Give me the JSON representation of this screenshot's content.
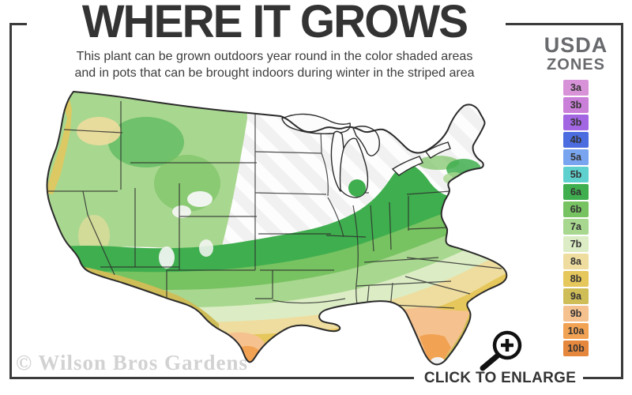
{
  "header": {
    "title": "WHERE IT GROWS",
    "subtitle_line1": "This plant can be grown outdoors year round in the color shaded areas",
    "subtitle_line2": "and in pots that can be brought indoors during winter in the striped area"
  },
  "legend": {
    "title_line1": "USDA",
    "title_line2": "ZONES",
    "zones": [
      {
        "label": "3a",
        "color": "#d893d8"
      },
      {
        "label": "3b",
        "color": "#ca7fd8"
      },
      {
        "label": "3b",
        "color": "#a266e2"
      },
      {
        "label": "4b",
        "color": "#4c6de0"
      },
      {
        "label": "5a",
        "color": "#79a4ef"
      },
      {
        "label": "5b",
        "color": "#5ed1cf"
      },
      {
        "label": "6a",
        "color": "#3fae4e"
      },
      {
        "label": "6b",
        "color": "#77c261"
      },
      {
        "label": "7a",
        "color": "#a8d78f"
      },
      {
        "label": "7b",
        "color": "#dcedc5"
      },
      {
        "label": "8a",
        "color": "#eedd9f"
      },
      {
        "label": "8b",
        "color": "#e6c75c"
      },
      {
        "label": "9a",
        "color": "#cfbd58"
      },
      {
        "label": "9b",
        "color": "#f5c28f"
      },
      {
        "label": "10a",
        "color": "#f2a253"
      },
      {
        "label": "10b",
        "color": "#e5873c"
      }
    ]
  },
  "map": {
    "region": "Continental United States",
    "striped_area_meaning": "grow in pots brought indoors during winter",
    "shaded_area_meaning": "grow outdoors year round",
    "no_grow_base": "#f1f1f1",
    "stripe_color": "#fdfdfd",
    "outline_color": "#2b2b2b",
    "state_line_color": "#2f2f2f"
  },
  "footer": {
    "watermark": "© Wilson Bros Gardens",
    "enlarge_label": "CLICK TO ENLARGE"
  },
  "frame_color": "#3b3b3b"
}
